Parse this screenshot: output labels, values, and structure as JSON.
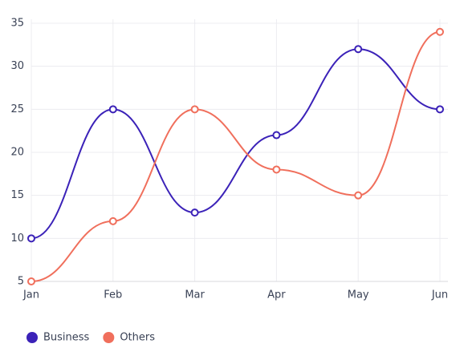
{
  "chart_data": {
    "type": "line",
    "categories": [
      "Jan",
      "Feb",
      "Mar",
      "Apr",
      "May",
      "Jun"
    ],
    "series": [
      {
        "name": "Business",
        "color": "#3b22b8",
        "values": [
          10,
          25,
          13,
          22,
          32,
          25
        ]
      },
      {
        "name": "Others",
        "color": "#f06f5c",
        "values": [
          5,
          12,
          25,
          18,
          15,
          34
        ]
      }
    ],
    "ylim": [
      5,
      35
    ],
    "yticks": [
      5,
      10,
      15,
      20,
      25,
      30,
      35
    ],
    "grid": true,
    "legend": "bottom-left"
  }
}
